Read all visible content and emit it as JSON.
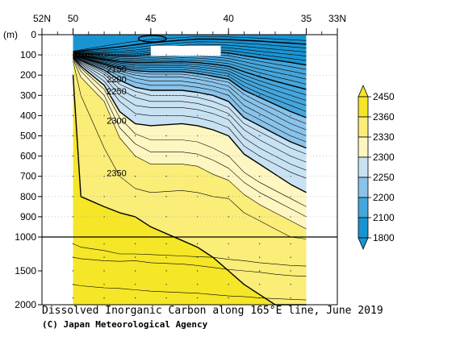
{
  "chart_data": {
    "type": "contour",
    "title": "Dissolved Inorganic Carbon along 165°E line, June 2019",
    "credit": "(C) Japan Meteorological Agency",
    "x_axis": {
      "quantity": "latitude",
      "reversed": true,
      "range": [
        52,
        33
      ],
      "ticks": [
        {
          "value": 52,
          "label": "52N"
        },
        {
          "value": 50,
          "label": "50"
        },
        {
          "value": 45,
          "label": "45"
        },
        {
          "value": 40,
          "label": "40"
        },
        {
          "value": 35,
          "label": "35"
        },
        {
          "value": 33,
          "label": "33N"
        }
      ]
    },
    "y_axis": {
      "unit_label": "(m)",
      "upper_segment": {
        "range": [
          0,
          1000
        ],
        "ticks": [
          0,
          100,
          200,
          300,
          400,
          500,
          600,
          700,
          800,
          900,
          1000
        ]
      },
      "lower_segment": {
        "range": [
          1000,
          2000
        ],
        "ticks": [
          1500,
          2000
        ]
      }
    },
    "data_extent_lat": [
      50,
      35
    ],
    "colorbar": {
      "labels": [
        "2450",
        "2360",
        "2330",
        "2300",
        "2250",
        "2200",
        "2100",
        "1800"
      ],
      "bands": [
        {
          "lower": 2360,
          "upper": 2450,
          "color": "#f5e627"
        },
        {
          "lower": 2330,
          "upper": 2360,
          "color": "#faed78"
        },
        {
          "lower": 2300,
          "upper": 2330,
          "color": "#fdf6c0"
        },
        {
          "lower": 2250,
          "upper": 2300,
          "color": "#c8e2f3"
        },
        {
          "lower": 2200,
          "upper": 2250,
          "color": "#8ac3ea"
        },
        {
          "lower": 2100,
          "upper": 2200,
          "color": "#45a6dc"
        },
        {
          "lower": 1800,
          "upper": 2100,
          "color": "#1994d2"
        }
      ]
    },
    "profile_lats": [
      50,
      49.5,
      48,
      47,
      46,
      45,
      43,
      42,
      41,
      40,
      39,
      38,
      37,
      36,
      35
    ],
    "isolines": [
      {
        "value": 2350,
        "labeled": true,
        "depth": [
          200,
          800,
          850,
          880,
          900,
          950,
          1050,
          1150,
          1300,
          1500,
          1700,
          1850,
          2000,
          2000,
          2000
        ]
      },
      {
        "value": 2340,
        "labeled": false,
        "depth": [
          130,
          300,
          560,
          700,
          760,
          780,
          770,
          780,
          800,
          810,
          880,
          920,
          960,
          1000,
          1030
        ]
      },
      {
        "value": 2330,
        "labeled": false,
        "depth": [
          120,
          210,
          330,
          510,
          600,
          640,
          640,
          650,
          690,
          720,
          790,
          840,
          880,
          920,
          960
        ]
      },
      {
        "value": 2320,
        "labeled": false,
        "depth": [
          117,
          180,
          300,
          460,
          540,
          580,
          580,
          590,
          620,
          660,
          730,
          780,
          820,
          860,
          900
        ]
      },
      {
        "value": 2310,
        "labeled": false,
        "depth": [
          114,
          165,
          270,
          410,
          490,
          520,
          520,
          530,
          560,
          600,
          680,
          730,
          770,
          810,
          850
        ]
      },
      {
        "value": 2300,
        "labeled": true,
        "depth": [
          112,
          155,
          250,
          380,
          440,
          450,
          440,
          450,
          470,
          500,
          590,
          640,
          690,
          740,
          780
        ]
      },
      {
        "value": 2290,
        "labeled": false,
        "depth": [
          110,
          145,
          230,
          330,
          390,
          400,
          400,
          410,
          430,
          460,
          550,
          600,
          640,
          680,
          710
        ]
      },
      {
        "value": 2280,
        "labeled": false,
        "depth": [
          108,
          140,
          210,
          300,
          350,
          360,
          360,
          370,
          390,
          420,
          510,
          560,
          600,
          640,
          670
        ]
      },
      {
        "value": 2270,
        "labeled": false,
        "depth": [
          106,
          135,
          195,
          270,
          310,
          330,
          330,
          340,
          360,
          390,
          470,
          520,
          560,
          600,
          630
        ]
      },
      {
        "value": 2260,
        "labeled": false,
        "depth": [
          104,
          130,
          185,
          245,
          280,
          300,
          300,
          310,
          330,
          360,
          440,
          480,
          520,
          560,
          590
        ]
      },
      {
        "value": 2250,
        "labeled": true,
        "depth": [
          103,
          127,
          175,
          225,
          260,
          275,
          275,
          285,
          300,
          330,
          410,
          450,
          490,
          530,
          560
        ]
      },
      {
        "value": 2240,
        "labeled": false,
        "depth": [
          102,
          124,
          165,
          205,
          235,
          250,
          250,
          260,
          275,
          300,
          380,
          420,
          460,
          500,
          530
        ]
      },
      {
        "value": 2230,
        "labeled": false,
        "depth": [
          101,
          121,
          160,
          190,
          215,
          230,
          230,
          240,
          255,
          275,
          350,
          390,
          430,
          470,
          500
        ]
      },
      {
        "value": 2220,
        "labeled": false,
        "depth": [
          100,
          118,
          155,
          180,
          200,
          210,
          210,
          220,
          235,
          255,
          320,
          360,
          400,
          440,
          470
        ]
      },
      {
        "value": 2210,
        "labeled": false,
        "depth": [
          99,
          116,
          150,
          172,
          188,
          195,
          195,
          205,
          220,
          235,
          295,
          335,
          370,
          410,
          440
        ]
      },
      {
        "value": 2200,
        "labeled": true,
        "depth": [
          98,
          114,
          145,
          165,
          178,
          183,
          183,
          192,
          205,
          220,
          275,
          310,
          345,
          380,
          410
        ]
      },
      {
        "value": 2190,
        "labeled": false,
        "depth": [
          97,
          112,
          140,
          158,
          168,
          172,
          172,
          180,
          192,
          205,
          255,
          290,
          320,
          350,
          380
        ]
      },
      {
        "value": 2180,
        "labeled": false,
        "depth": [
          96,
          110,
          135,
          152,
          160,
          162,
          162,
          168,
          180,
          192,
          235,
          268,
          298,
          325,
          350
        ]
      },
      {
        "value": 2170,
        "labeled": false,
        "depth": [
          95,
          108,
          130,
          146,
          152,
          153,
          152,
          158,
          168,
          180,
          218,
          248,
          275,
          300,
          325
        ]
      },
      {
        "value": 2160,
        "labeled": false,
        "depth": [
          94,
          106,
          126,
          140,
          145,
          145,
          143,
          148,
          157,
          168,
          200,
          228,
          252,
          275,
          298
        ]
      },
      {
        "value": 2150,
        "labeled": true,
        "depth": [
          93,
          104,
          122,
          134,
          138,
          137,
          134,
          138,
          146,
          156,
          183,
          208,
          230,
          250,
          270
        ]
      },
      {
        "value": 2140,
        "labeled": false,
        "depth": [
          92,
          102,
          118,
          128,
          131,
          129,
          124,
          127,
          134,
          143,
          166,
          188,
          208,
          226,
          245
        ]
      },
      {
        "value": 2130,
        "labeled": false,
        "depth": [
          91,
          100,
          114,
          122,
          124,
          121,
          114,
          116,
          122,
          130,
          150,
          170,
          186,
          202,
          220
        ]
      },
      {
        "value": 2120,
        "labeled": false,
        "depth": [
          90,
          98,
          110,
          116,
          117,
          113,
          104,
          105,
          110,
          117,
          134,
          150,
          165,
          180,
          196
        ]
      },
      {
        "value": 2110,
        "labeled": false,
        "depth": [
          89,
          96,
          105,
          110,
          110,
          105,
          94,
          94,
          98,
          104,
          118,
          132,
          145,
          158,
          172
        ]
      },
      {
        "value": 2100,
        "labeled": false,
        "depth": [
          88,
          94,
          100,
          104,
          103,
          97,
          84,
          83,
          86,
          91,
          103,
          115,
          126,
          137,
          150
        ]
      },
      {
        "value": 2090,
        "labeled": false,
        "depth": [
          87,
          92,
          95,
          98,
          95,
          88,
          74,
          72,
          74,
          78,
          88,
          98,
          108,
          118,
          128
        ]
      },
      {
        "value": 2080,
        "labeled": false,
        "depth": [
          86,
          90,
          90,
          90,
          86,
          78,
          64,
          60,
          62,
          65,
          73,
          82,
          90,
          98,
          106
        ]
      },
      {
        "value": 2070,
        "labeled": false,
        "depth": [
          85,
          87,
          84,
          82,
          76,
          67,
          53,
          48,
          49,
          52,
          58,
          65,
          72,
          79,
          86
        ]
      },
      {
        "value": 2060,
        "labeled": false,
        "depth": [
          84,
          84,
          77,
          72,
          64,
          54,
          40,
          35,
          36,
          38,
          43,
          48,
          54,
          60,
          66
        ]
      },
      {
        "value": 2050,
        "labeled": false,
        "depth": [
          83,
          80,
          68,
          60,
          50,
          40,
          27,
          22,
          22,
          24,
          28,
          32,
          37,
          42,
          47
        ]
      },
      {
        "value": 2040,
        "labeled": false,
        "depth": [
          82,
          75,
          56,
          44,
          33,
          24,
          14,
          10,
          10,
          11,
          14,
          17,
          21,
          25,
          29
        ]
      }
    ],
    "deep_isolines": [
      {
        "depth": [
          1300,
          1320,
          1350,
          1360,
          1350,
          1380,
          1400,
          1420,
          1450,
          1480,
          1500,
          1520,
          1550,
          1570,
          1580
        ]
      },
      {
        "depth": [
          1100,
          1150,
          1200,
          1250,
          1250,
          1260,
          1280,
          1290,
          1300,
          1330,
          1350,
          1380,
          1400,
          1420,
          1430
        ]
      },
      {
        "depth": [
          1700,
          1720,
          1750,
          1760,
          1780,
          1800,
          1820,
          1830,
          1850,
          1870,
          1880,
          1900,
          1910,
          1920,
          1930
        ]
      }
    ],
    "contour_labels": [
      {
        "text": "2150",
        "lat": 47.2,
        "depth": 185
      },
      {
        "text": "2200",
        "lat": 47.2,
        "depth": 235
      },
      {
        "text": "2250",
        "lat": 47.2,
        "depth": 295
      },
      {
        "text": "2300",
        "lat": 47.2,
        "depth": 440
      },
      {
        "text": "2350",
        "lat": 47.2,
        "depth": 700
      }
    ],
    "surface_lens": {
      "lat_range": [
        45.8,
        44.0
      ],
      "depth": 20
    },
    "blank_patch": {
      "lat_range": [
        45,
        40.5
      ],
      "depth_range": [
        55,
        105
      ]
    },
    "reference_line_depth": 1000
  }
}
